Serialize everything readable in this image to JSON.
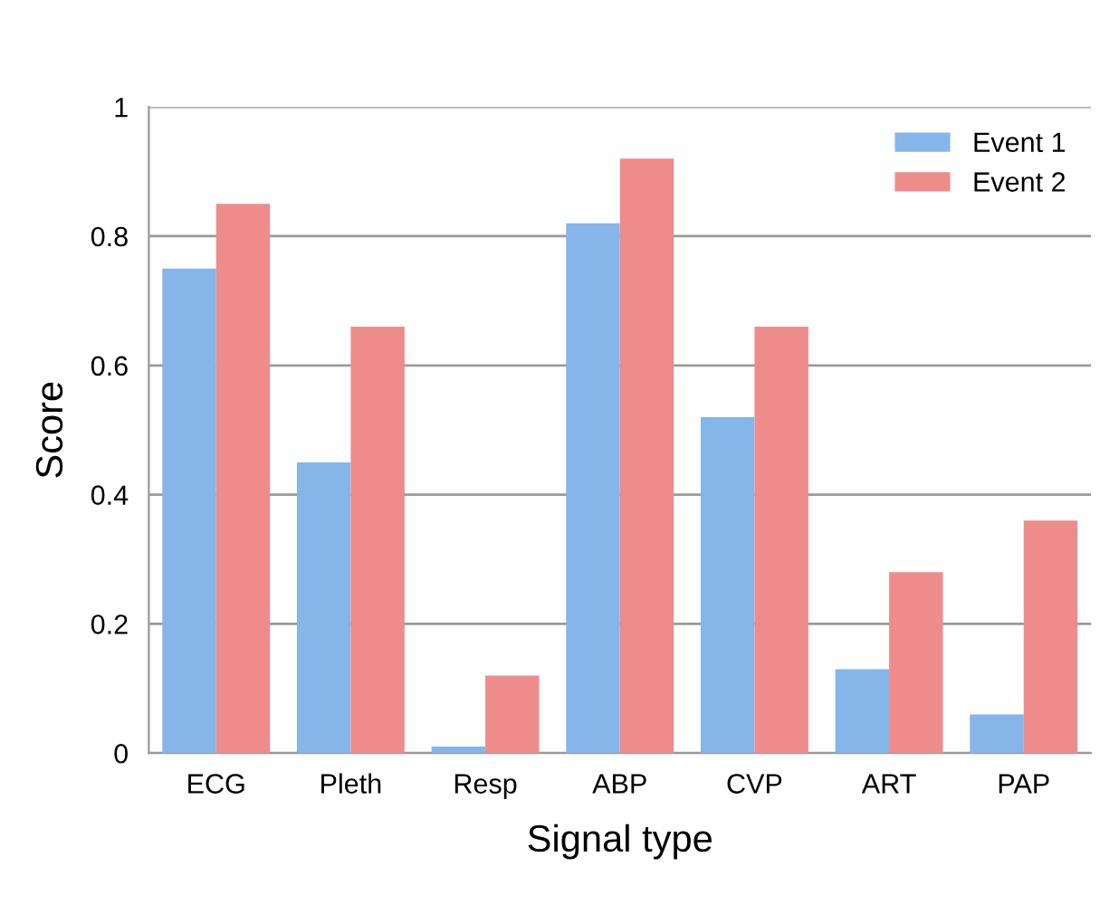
{
  "chart_data": {
    "type": "bar",
    "xlabel": "Signal type",
    "ylabel": "Score",
    "categories": [
      "ECG",
      "Pleth",
      "Resp",
      "ABP",
      "CVP",
      "ART",
      "PAP"
    ],
    "series": [
      {
        "name": "Event 1",
        "color": "#86b5ea",
        "values": [
          0.75,
          0.45,
          0.01,
          0.82,
          0.52,
          0.13,
          0.06
        ]
      },
      {
        "name": "Event 2",
        "color": "#ee8c8c",
        "values": [
          0.85,
          0.66,
          0.12,
          0.92,
          0.66,
          0.28,
          0.36
        ]
      }
    ],
    "ylim": [
      0,
      1
    ],
    "yticks": [
      0,
      0.2,
      0.4,
      0.6,
      0.8,
      1
    ],
    "grid": "y",
    "legend": "top right"
  }
}
